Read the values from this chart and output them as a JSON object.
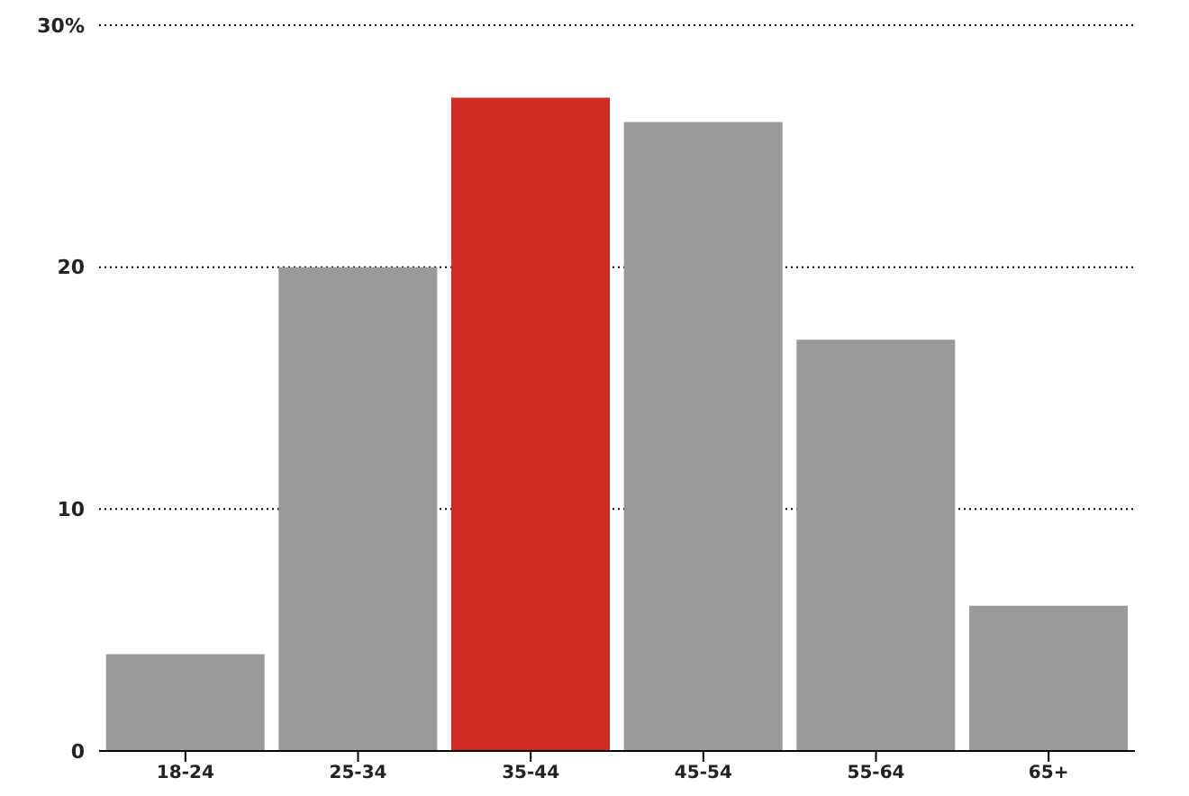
{
  "chart_data": {
    "type": "bar",
    "categories": [
      "18-24",
      "25-34",
      "35-44",
      "45-54",
      "55-64",
      "65+"
    ],
    "values": [
      4,
      20,
      27,
      26,
      17,
      6
    ],
    "colors": [
      "#999999",
      "#999999",
      "#d12b24",
      "#999999",
      "#999999",
      "#999999"
    ],
    "ylim": [
      0,
      30
    ],
    "yticks": [
      0,
      10,
      20,
      {
        "value": 30,
        "label": "30%"
      }
    ],
    "grid": "y"
  }
}
